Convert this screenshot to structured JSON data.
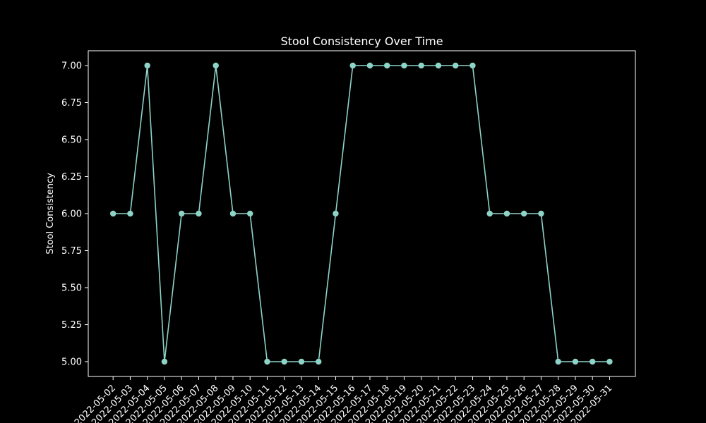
{
  "chart_data": {
    "type": "line",
    "title": "Stool Consistency Over Time",
    "xlabel": "",
    "ylabel": "Stool Consistency",
    "x": [
      "2022-05-02",
      "2022-05-03",
      "2022-05-04",
      "2022-05-05",
      "2022-05-06",
      "2022-05-07",
      "2022-05-08",
      "2022-05-09",
      "2022-05-10",
      "2022-05-11",
      "2022-05-12",
      "2022-05-13",
      "2022-05-14",
      "2022-05-15",
      "2022-05-16",
      "2022-05-17",
      "2022-05-18",
      "2022-05-19",
      "2022-05-20",
      "2022-05-21",
      "2022-05-22",
      "2022-05-23",
      "2022-05-24",
      "2022-05-25",
      "2022-05-26",
      "2022-05-27",
      "2022-05-28",
      "2022-05-29",
      "2022-05-30",
      "2022-05-31"
    ],
    "values": [
      6,
      6,
      7,
      5,
      6,
      6,
      7,
      6,
      6,
      5,
      5,
      5,
      5,
      6,
      7,
      7,
      7,
      7,
      7,
      7,
      7,
      7,
      6,
      6,
      6,
      6,
      5,
      5,
      5,
      5
    ],
    "ylim": [
      4.9,
      7.1
    ],
    "yticks": [
      "5.00",
      "5.25",
      "5.50",
      "5.75",
      "6.00",
      "6.25",
      "6.50",
      "6.75",
      "7.00"
    ],
    "grid": false,
    "colors": {
      "background": "#000000",
      "series": "#8dd3c7",
      "axes": "#ffffff"
    }
  }
}
